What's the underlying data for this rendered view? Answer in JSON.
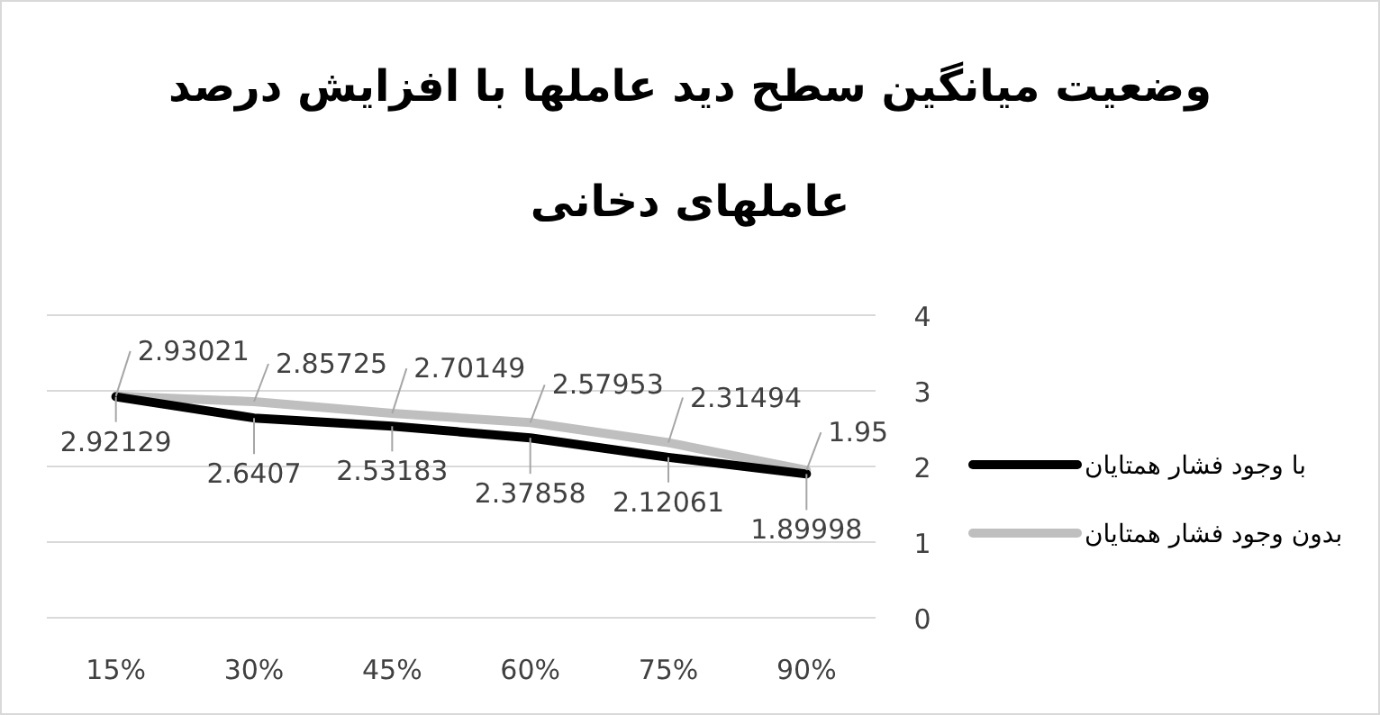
{
  "chart_data": {
    "type": "line",
    "title": "وضعیت میانگین سطح دید عاملها با افزایش درصد عاملهای دخانی",
    "categories": [
      "15%",
      "30%",
      "45%",
      "60%",
      "75%",
      "90%"
    ],
    "series": [
      {
        "name": "با وجود فشار همتایان",
        "color": "#000000",
        "values": [
          2.92129,
          2.6407,
          2.53183,
          2.37858,
          2.12061,
          1.89998
        ]
      },
      {
        "name": "بدون وجود فشار همتایان",
        "color": "#bfbfbf",
        "values": [
          2.93021,
          2.85725,
          2.70149,
          2.57953,
          2.31494,
          1.95
        ]
      }
    ],
    "ylim": [
      0,
      4
    ],
    "yticks": [
      0,
      1,
      2,
      3,
      4
    ],
    "grid": "y",
    "legend": "right",
    "data_labels": true,
    "marker": "none",
    "line_style": "solid"
  }
}
